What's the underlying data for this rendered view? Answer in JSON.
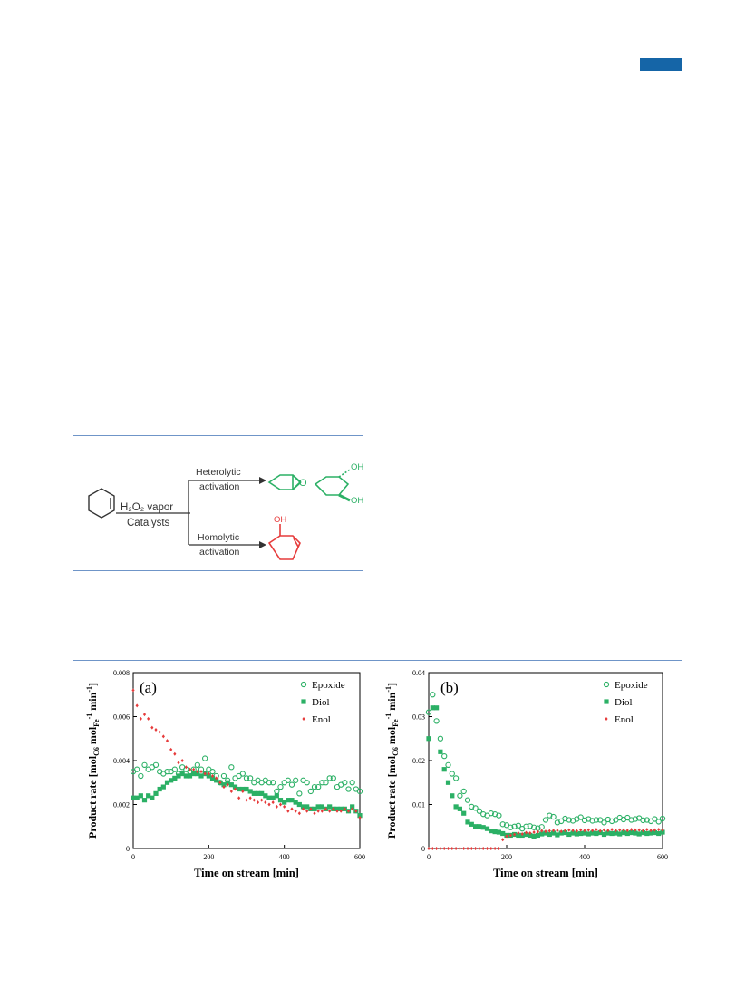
{
  "header": {
    "rule_color": "#6f95c8",
    "badge_color": "#1565a7"
  },
  "scheme": {
    "reagent_top": "H₂O₂ vapor",
    "reagent_bottom": "Catalysts",
    "branch_top_line1": "Heterolytic",
    "branch_top_line2": "activation",
    "branch_bottom_line1": "Homolytic",
    "branch_bottom_line2": "activation",
    "epoxide_label": "O",
    "diol_label_top": "OH",
    "diol_label_bottom": "OH",
    "enol_label": "OH",
    "hetero_color": "#2bb065",
    "homo_color": "#e63b3b"
  },
  "chart_data": [
    {
      "type": "scatter",
      "panel_label": "(a)",
      "xlabel": "Time on stream [min]",
      "ylabel": "Product rate [molC6 molFe-1 min-1]",
      "xlim": [
        0,
        600
      ],
      "ylim": [
        0,
        0.008
      ],
      "xticks": [
        "0",
        "200",
        "400",
        "600"
      ],
      "yticks": [
        "0",
        "0.002",
        "0.004",
        "0.006",
        "0.008"
      ],
      "legend_position": "top-right",
      "series": [
        {
          "name": "Epoxide",
          "marker": "open-circle",
          "color": "#2bb065",
          "x": [
            0,
            10,
            20,
            30,
            40,
            50,
            60,
            70,
            80,
            90,
            100,
            110,
            120,
            130,
            140,
            150,
            160,
            170,
            180,
            190,
            200,
            210,
            220,
            230,
            240,
            250,
            260,
            270,
            280,
            290,
            300,
            310,
            320,
            330,
            340,
            350,
            360,
            370,
            380,
            390,
            400,
            410,
            420,
            430,
            440,
            450,
            460,
            470,
            480,
            490,
            500,
            510,
            520,
            530,
            540,
            550,
            560,
            570,
            580,
            590,
            600
          ],
          "y": [
            0.0035,
            0.0036,
            0.0033,
            0.0038,
            0.0036,
            0.0037,
            0.0038,
            0.0035,
            0.0034,
            0.0035,
            0.0035,
            0.0036,
            0.0034,
            0.0037,
            0.0036,
            0.0035,
            0.0036,
            0.0038,
            0.0036,
            0.0041,
            0.0036,
            0.0035,
            0.0033,
            0.003,
            0.0033,
            0.0031,
            0.0037,
            0.0032,
            0.0033,
            0.0034,
            0.0032,
            0.0032,
            0.003,
            0.0031,
            0.003,
            0.0031,
            0.003,
            0.003,
            0.0026,
            0.0028,
            0.003,
            0.0031,
            0.0029,
            0.0031,
            0.0025,
            0.0031,
            0.003,
            0.0026,
            0.0028,
            0.0028,
            0.003,
            0.003,
            0.0032,
            0.0032,
            0.0028,
            0.0029,
            0.003,
            0.0027,
            0.003,
            0.0027,
            0.0026
          ]
        },
        {
          "name": "Diol",
          "marker": "filled-square",
          "color": "#2bb065",
          "x": [
            0,
            10,
            20,
            30,
            40,
            50,
            60,
            70,
            80,
            90,
            100,
            110,
            120,
            130,
            140,
            150,
            160,
            170,
            180,
            190,
            200,
            210,
            220,
            230,
            240,
            250,
            260,
            270,
            280,
            290,
            300,
            310,
            320,
            330,
            340,
            350,
            360,
            370,
            380,
            390,
            400,
            410,
            420,
            430,
            440,
            450,
            460,
            470,
            480,
            490,
            500,
            510,
            520,
            530,
            540,
            550,
            560,
            570,
            580,
            590,
            600
          ],
          "y": [
            0.0023,
            0.0023,
            0.0024,
            0.0022,
            0.0024,
            0.0023,
            0.0025,
            0.0027,
            0.0028,
            0.003,
            0.0031,
            0.0032,
            0.0033,
            0.0034,
            0.0033,
            0.0033,
            0.0034,
            0.0034,
            0.0033,
            0.0034,
            0.0033,
            0.0032,
            0.0031,
            0.003,
            0.0029,
            0.003,
            0.0029,
            0.0028,
            0.0027,
            0.0027,
            0.0027,
            0.0026,
            0.0025,
            0.0025,
            0.0025,
            0.0024,
            0.0023,
            0.0023,
            0.0024,
            0.0022,
            0.0021,
            0.0022,
            0.0022,
            0.0021,
            0.002,
            0.0019,
            0.0019,
            0.0018,
            0.0018,
            0.0019,
            0.0019,
            0.0018,
            0.0019,
            0.0018,
            0.0018,
            0.0018,
            0.0018,
            0.0017,
            0.0019,
            0.0017,
            0.0015
          ]
        },
        {
          "name": "Enol",
          "marker": "diamond",
          "color": "#e63b3b",
          "x": [
            0,
            10,
            20,
            30,
            40,
            50,
            60,
            70,
            80,
            90,
            100,
            110,
            120,
            130,
            140,
            150,
            160,
            170,
            180,
            190,
            200,
            210,
            220,
            230,
            240,
            250,
            260,
            270,
            280,
            290,
            300,
            310,
            320,
            330,
            340,
            350,
            360,
            370,
            380,
            390,
            400,
            410,
            420,
            430,
            440,
            450,
            460,
            470,
            480,
            490,
            500,
            510,
            520,
            530,
            540,
            550,
            560,
            570,
            580,
            590,
            600
          ],
          "y": [
            0.0072,
            0.0065,
            0.0059,
            0.0061,
            0.0059,
            0.0055,
            0.0054,
            0.0053,
            0.0051,
            0.0049,
            0.0045,
            0.0043,
            0.0039,
            0.004,
            0.0037,
            0.0036,
            0.0036,
            0.0035,
            0.0035,
            0.0034,
            0.0034,
            0.0033,
            0.0032,
            0.003,
            0.0028,
            0.0029,
            0.0026,
            0.0027,
            0.0023,
            0.0026,
            0.0022,
            0.0023,
            0.0022,
            0.0021,
            0.0022,
            0.0021,
            0.002,
            0.0021,
            0.0019,
            0.002,
            0.0019,
            0.0017,
            0.0018,
            0.0017,
            0.0016,
            0.0018,
            0.0017,
            0.0018,
            0.0016,
            0.0017,
            0.0017,
            0.0018,
            0.0017,
            0.0018,
            0.0017,
            0.0017,
            0.0018,
            0.0017,
            0.0018,
            0.0017,
            0.0014
          ]
        }
      ]
    },
    {
      "type": "scatter",
      "panel_label": "(b)",
      "xlabel": "Time on stream [min]",
      "ylabel": "Product rate [molC6 molFe-1 min-1]",
      "xlim": [
        0,
        600
      ],
      "ylim": [
        0,
        0.04
      ],
      "xticks": [
        "0",
        "200",
        "400",
        "600"
      ],
      "yticks": [
        "0",
        "0.01",
        "0.02",
        "0.03",
        "0.04"
      ],
      "legend_position": "top-right",
      "series": [
        {
          "name": "Epoxide",
          "marker": "open-circle",
          "color": "#2bb065",
          "x": [
            0,
            10,
            20,
            30,
            40,
            50,
            60,
            70,
            80,
            90,
            100,
            110,
            120,
            130,
            140,
            150,
            160,
            170,
            180,
            190,
            200,
            210,
            220,
            230,
            240,
            250,
            260,
            270,
            280,
            290,
            300,
            310,
            320,
            330,
            340,
            350,
            360,
            370,
            380,
            390,
            400,
            410,
            420,
            430,
            440,
            450,
            460,
            470,
            480,
            490,
            500,
            510,
            520,
            530,
            540,
            550,
            560,
            570,
            580,
            590,
            600
          ],
          "y": [
            0.031,
            0.035,
            0.029,
            0.025,
            0.021,
            0.019,
            0.017,
            0.016,
            0.012,
            0.013,
            0.011,
            0.0095,
            0.0092,
            0.0085,
            0.0078,
            0.0075,
            0.008,
            0.0078,
            0.0075,
            0.0055,
            0.0053,
            0.0048,
            0.005,
            0.0052,
            0.0045,
            0.005,
            0.0051,
            0.0048,
            0.0046,
            0.0049,
            0.0065,
            0.0075,
            0.0072,
            0.0059,
            0.0062,
            0.0068,
            0.0065,
            0.0063,
            0.0067,
            0.0071,
            0.0064,
            0.0067,
            0.0063,
            0.0065,
            0.0065,
            0.0059,
            0.0066,
            0.0062,
            0.0065,
            0.007,
            0.0066,
            0.007,
            0.0065,
            0.0067,
            0.0069,
            0.0064,
            0.0065,
            0.0062,
            0.0067,
            0.0061,
            0.0068
          ]
        },
        {
          "name": "Diol",
          "marker": "filled-square",
          "color": "#2bb065",
          "x": [
            0,
            10,
            20,
            30,
            40,
            50,
            60,
            70,
            80,
            90,
            100,
            110,
            120,
            130,
            140,
            150,
            160,
            170,
            180,
            190,
            200,
            210,
            220,
            230,
            240,
            250,
            260,
            270,
            280,
            290,
            300,
            310,
            320,
            330,
            340,
            350,
            360,
            370,
            380,
            390,
            400,
            410,
            420,
            430,
            440,
            450,
            460,
            470,
            480,
            490,
            500,
            510,
            520,
            530,
            540,
            550,
            560,
            570,
            580,
            590,
            600
          ],
          "y": [
            0.025,
            0.032,
            0.032,
            0.022,
            0.018,
            0.015,
            0.012,
            0.0095,
            0.009,
            0.008,
            0.006,
            0.0055,
            0.005,
            0.005,
            0.0048,
            0.0045,
            0.004,
            0.0038,
            0.0037,
            0.0034,
            0.003,
            0.003,
            0.0032,
            0.003,
            0.003,
            0.0032,
            0.003,
            0.0028,
            0.003,
            0.0033,
            0.0035,
            0.0032,
            0.0035,
            0.0031,
            0.0035,
            0.0036,
            0.0032,
            0.0035,
            0.0033,
            0.0034,
            0.0035,
            0.0033,
            0.0035,
            0.0034,
            0.0036,
            0.0032,
            0.0035,
            0.0034,
            0.0035,
            0.0033,
            0.0036,
            0.0034,
            0.0036,
            0.0035,
            0.0033,
            0.0036,
            0.0034,
            0.0035,
            0.0036,
            0.0034,
            0.0037
          ]
        },
        {
          "name": "Enol",
          "marker": "diamond",
          "color": "#e63b3b",
          "x": [
            0,
            10,
            20,
            30,
            40,
            50,
            60,
            70,
            80,
            90,
            100,
            110,
            120,
            130,
            140,
            150,
            160,
            170,
            180,
            190,
            200,
            210,
            220,
            230,
            240,
            250,
            260,
            270,
            280,
            290,
            300,
            310,
            320,
            330,
            340,
            350,
            360,
            370,
            380,
            390,
            400,
            410,
            420,
            430,
            440,
            450,
            460,
            470,
            480,
            490,
            500,
            510,
            520,
            530,
            540,
            550,
            560,
            570,
            580,
            590,
            600
          ],
          "y": [
            0,
            0,
            0,
            0,
            0,
            0,
            0,
            0,
            0,
            0,
            0,
            0,
            0,
            0,
            0,
            0,
            0,
            0,
            0,
            0.002,
            0.0028,
            0.003,
            0.0032,
            0.0035,
            0.0033,
            0.0036,
            0.0035,
            0.0037,
            0.0038,
            0.004,
            0.0039,
            0.004,
            0.0041,
            0.0041,
            0.0039,
            0.0041,
            0.0042,
            0.0041,
            0.004,
            0.0042,
            0.0041,
            0.0042,
            0.0041,
            0.0043,
            0.004,
            0.0042,
            0.0041,
            0.0043,
            0.0041,
            0.0042,
            0.0042,
            0.0041,
            0.0043,
            0.0042,
            0.0042,
            0.0041,
            0.0043,
            0.0041,
            0.0042,
            0.0043,
            0.0042
          ]
        }
      ]
    }
  ]
}
